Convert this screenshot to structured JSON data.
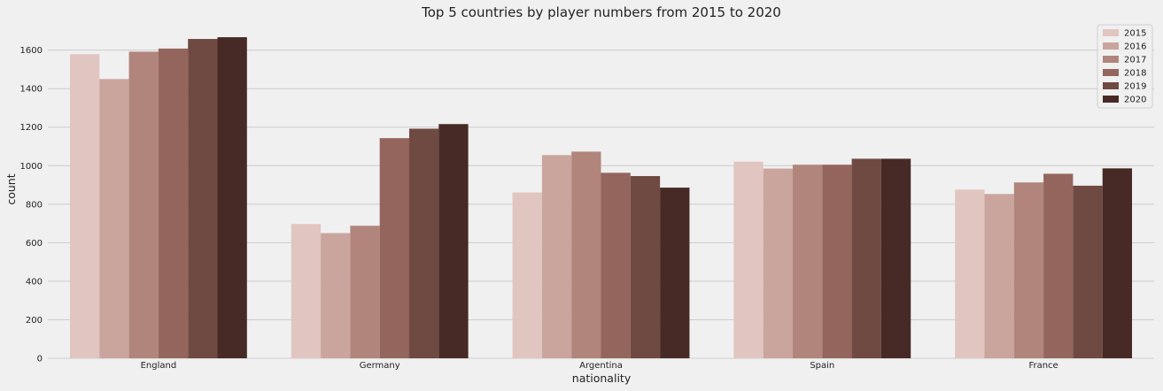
{
  "chart_data": {
    "type": "bar",
    "title": "Top 5 countries by player numbers from 2015 to 2020",
    "xlabel": "nationality",
    "ylabel": "count",
    "categories": [
      "England",
      "Germany",
      "Argentina",
      "Spain",
      "France"
    ],
    "ylim": [
      0,
      1750
    ],
    "yticks": [
      0,
      200,
      400,
      600,
      800,
      1000,
      1200,
      1400,
      1600
    ],
    "grid": "y",
    "legend": "top-right",
    "series": [
      {
        "name": "2015",
        "color": "#e1c5c0",
        "values": [
          1579,
          697,
          861,
          1021,
          876
        ]
      },
      {
        "name": "2016",
        "color": "#caa59e",
        "values": [
          1450,
          650,
          1055,
          985,
          853
        ]
      },
      {
        "name": "2017",
        "color": "#b1857b",
        "values": [
          1592,
          688,
          1073,
          1005,
          913
        ]
      },
      {
        "name": "2018",
        "color": "#93655c",
        "values": [
          1608,
          1143,
          963,
          1005,
          958
        ]
      },
      {
        "name": "2019",
        "color": "#6f4a42",
        "values": [
          1658,
          1192,
          946,
          1036,
          896
        ]
      },
      {
        "name": "2020",
        "color": "#472a25",
        "values": [
          1667,
          1216,
          886,
          1036,
          986
        ]
      }
    ]
  }
}
